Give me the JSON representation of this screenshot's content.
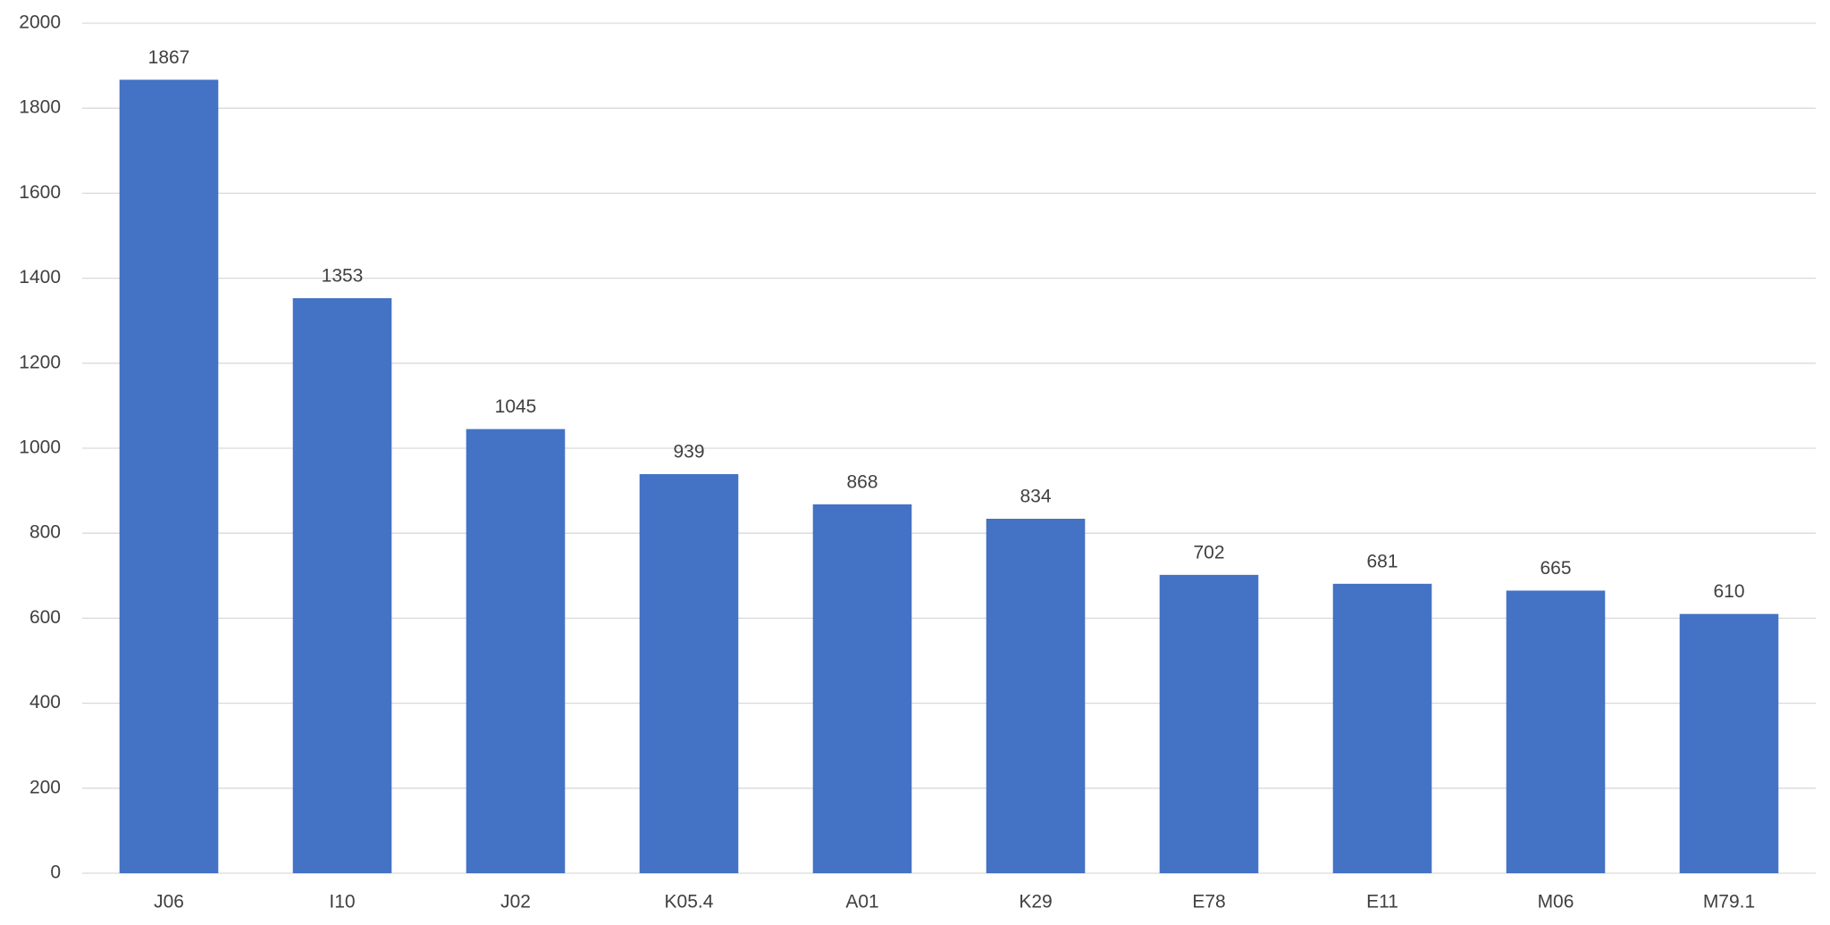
{
  "chart_data": {
    "type": "bar",
    "categories": [
      "J06",
      "I10",
      "J02",
      "K05.4",
      "A01",
      "K29",
      "E78",
      "E11",
      "M06",
      "M79.1"
    ],
    "values": [
      1867,
      1353,
      1045,
      939,
      868,
      834,
      702,
      681,
      665,
      610
    ],
    "color": "#4472c4",
    "ylim": [
      0,
      2000
    ],
    "yticks": [
      0,
      200,
      400,
      600,
      800,
      1000,
      1200,
      1400,
      1600,
      1800,
      2000
    ],
    "grid": true,
    "data_labels": true
  }
}
